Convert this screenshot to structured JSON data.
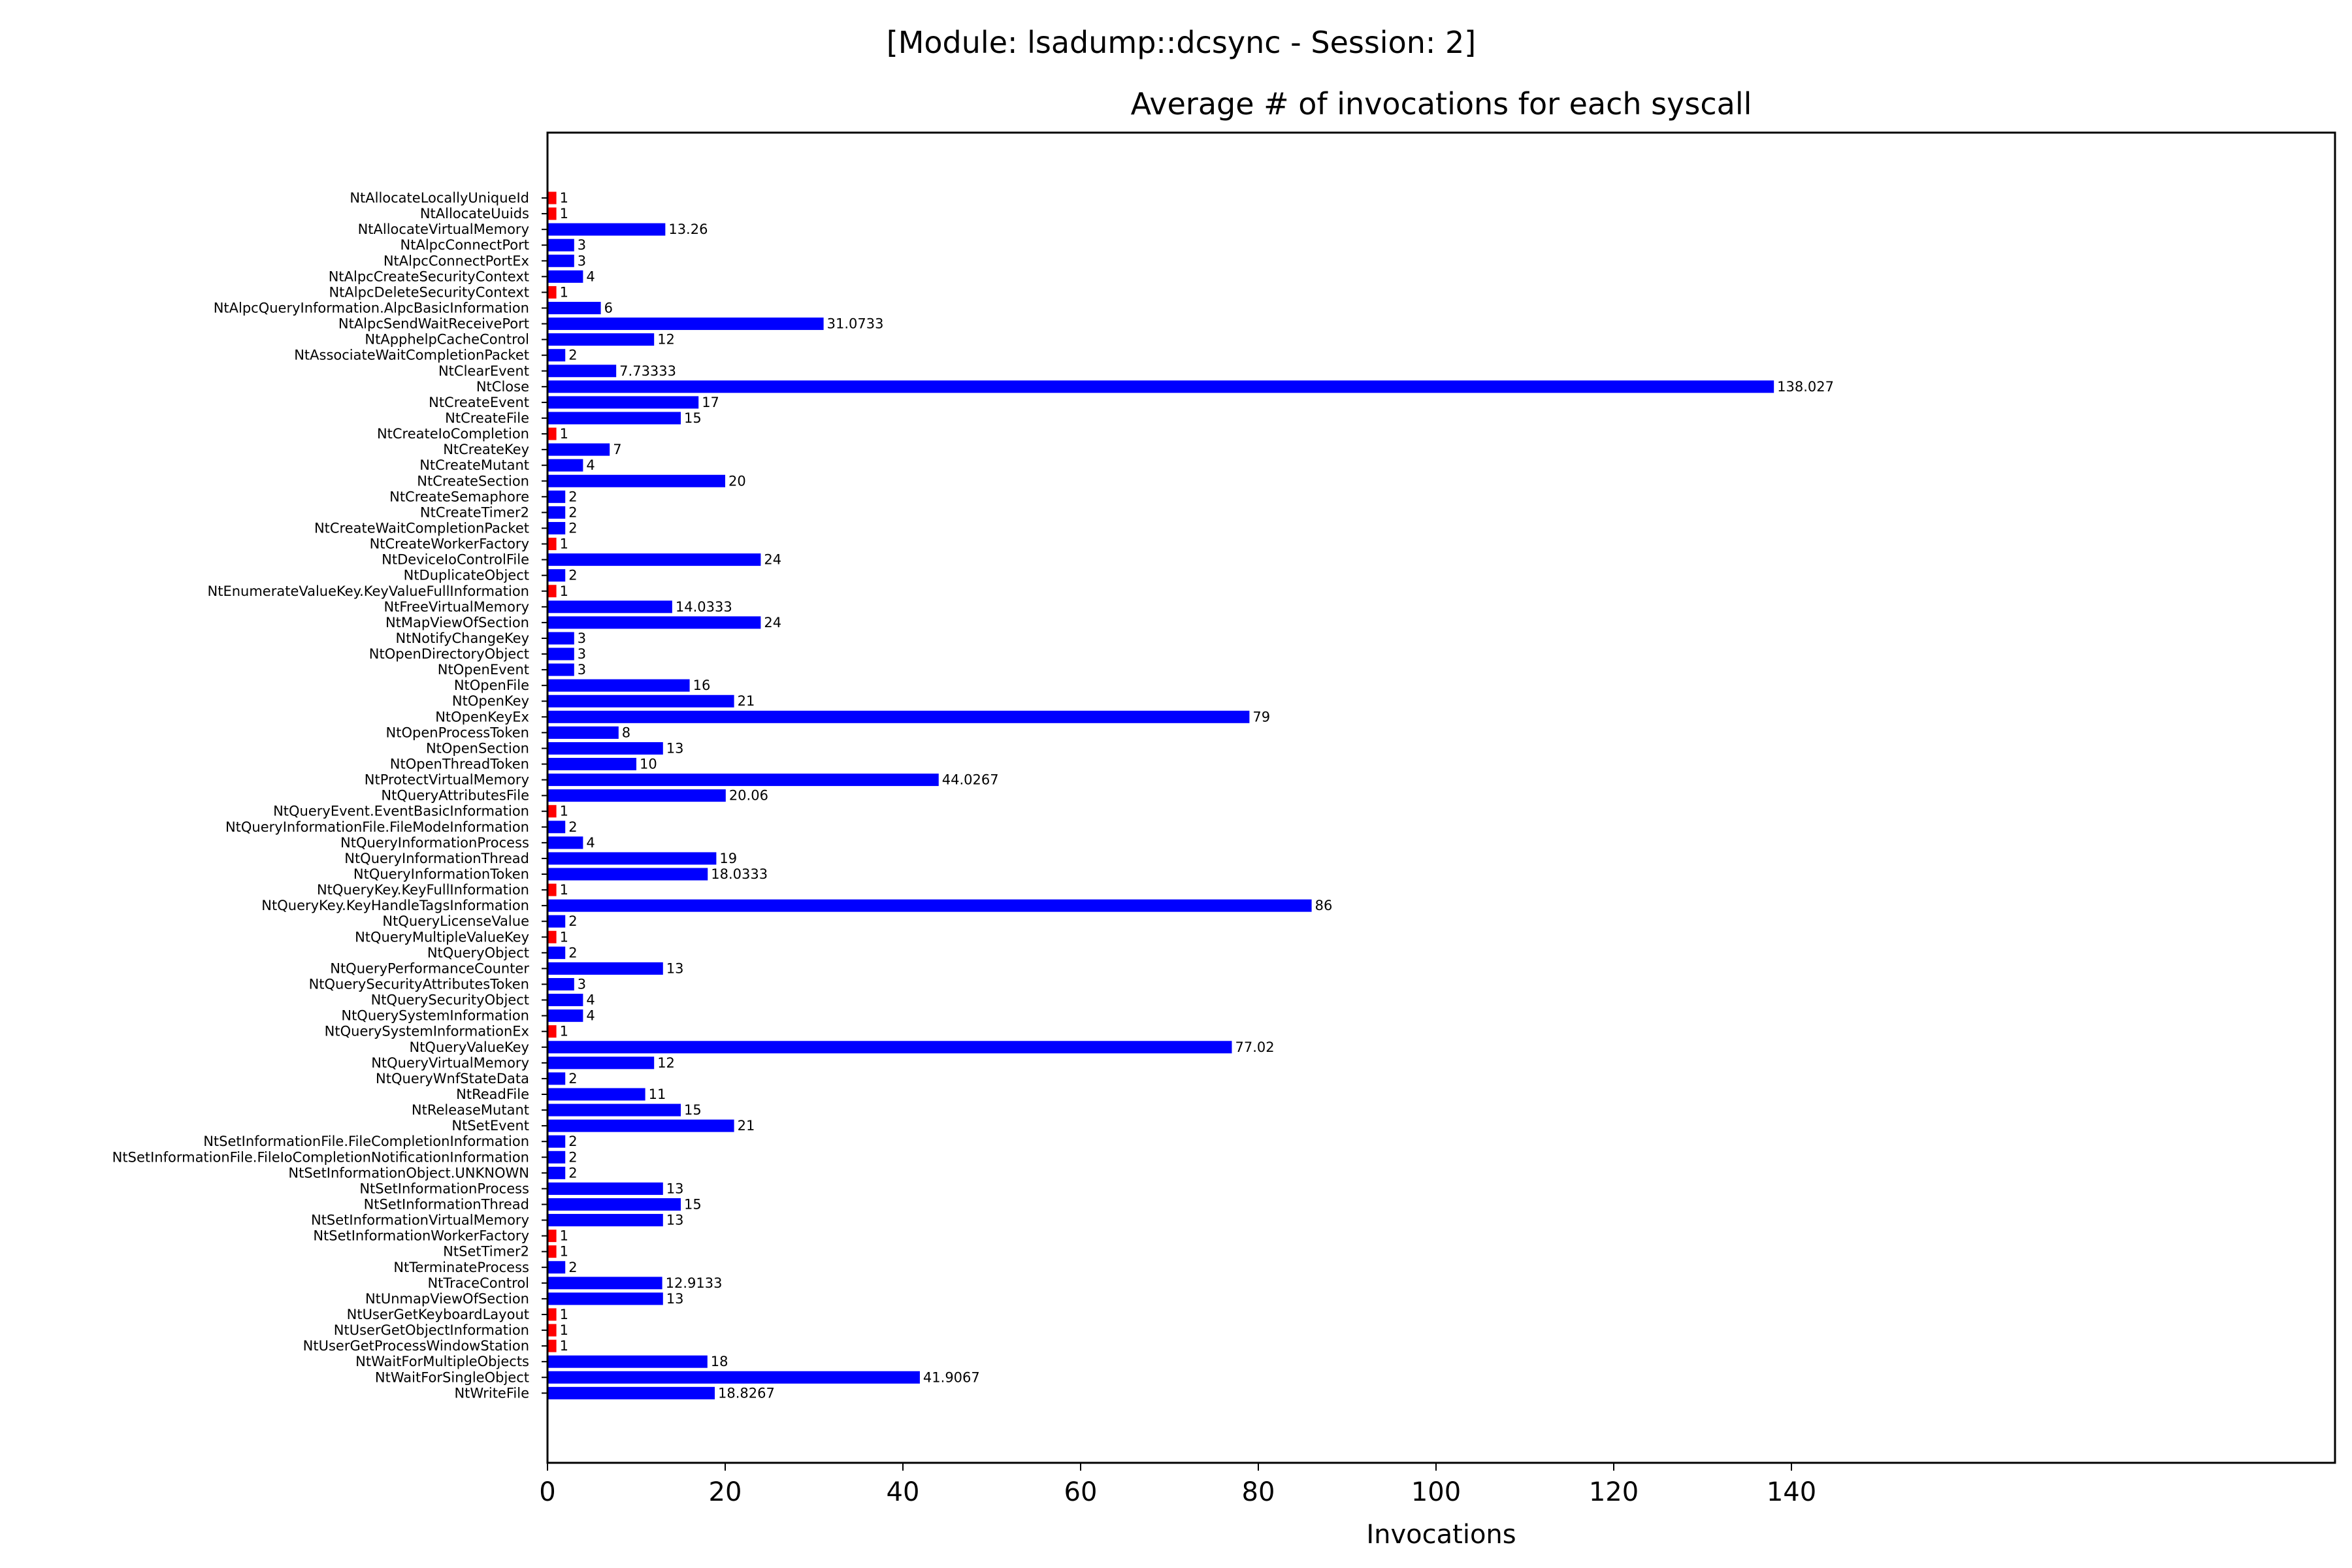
{
  "suptitle": "[Module: lsadump::dcsync - Session: 2]",
  "chart_data": {
    "type": "bar",
    "orientation": "horizontal",
    "title": "Average # of invocations for each syscall",
    "xlabel": "Invocations",
    "ylabel": "",
    "xlim": [
      0,
      145
    ],
    "xticks": [
      0,
      20,
      40,
      60,
      80,
      100,
      120,
      140
    ],
    "grid": false,
    "colors": {
      "default": "#0000ff",
      "single_invocation": "#ff0000"
    },
    "categories": [
      "NtAllocateLocallyUniqueId",
      "NtAllocateUuids",
      "NtAllocateVirtualMemory",
      "NtAlpcConnectPort",
      "NtAlpcConnectPortEx",
      "NtAlpcCreateSecurityContext",
      "NtAlpcDeleteSecurityContext",
      "NtAlpcQueryInformation.AlpcBasicInformation",
      "NtAlpcSendWaitReceivePort",
      "NtApphelpCacheControl",
      "NtAssociateWaitCompletionPacket",
      "NtClearEvent",
      "NtClose",
      "NtCreateEvent",
      "NtCreateFile",
      "NtCreateIoCompletion",
      "NtCreateKey",
      "NtCreateMutant",
      "NtCreateSection",
      "NtCreateSemaphore",
      "NtCreateTimer2",
      "NtCreateWaitCompletionPacket",
      "NtCreateWorkerFactory",
      "NtDeviceIoControlFile",
      "NtDuplicateObject",
      "NtEnumerateValueKey.KeyValueFullInformation",
      "NtFreeVirtualMemory",
      "NtMapViewOfSection",
      "NtNotifyChangeKey",
      "NtOpenDirectoryObject",
      "NtOpenEvent",
      "NtOpenFile",
      "NtOpenKey",
      "NtOpenKeyEx",
      "NtOpenProcessToken",
      "NtOpenSection",
      "NtOpenThreadToken",
      "NtProtectVirtualMemory",
      "NtQueryAttributesFile",
      "NtQueryEvent.EventBasicInformation",
      "NtQueryInformationFile.FileModeInformation",
      "NtQueryInformationProcess",
      "NtQueryInformationThread",
      "NtQueryInformationToken",
      "NtQueryKey.KeyFullInformation",
      "NtQueryKey.KeyHandleTagsInformation",
      "NtQueryLicenseValue",
      "NtQueryMultipleValueKey",
      "NtQueryObject",
      "NtQueryPerformanceCounter",
      "NtQuerySecurityAttributesToken",
      "NtQuerySecurityObject",
      "NtQuerySystemInformation",
      "NtQuerySystemInformationEx",
      "NtQueryValueKey",
      "NtQueryVirtualMemory",
      "NtQueryWnfStateData",
      "NtReadFile",
      "NtReleaseMutant",
      "NtSetEvent",
      "NtSetInformationFile.FileCompletionInformation",
      "NtSetInformationFile.FileIoCompletionNotificationInformation",
      "NtSetInformationObject.UNKNOWN",
      "NtSetInformationProcess",
      "NtSetInformationThread",
      "NtSetInformationVirtualMemory",
      "NtSetInformationWorkerFactory",
      "NtSetTimer2",
      "NtTerminateProcess",
      "NtTraceControl",
      "NtUnmapViewOfSection",
      "NtUserGetKeyboardLayout",
      "NtUserGetObjectInformation",
      "NtUserGetProcessWindowStation",
      "NtWaitForMultipleObjects",
      "NtWaitForSingleObject",
      "NtWriteFile"
    ],
    "values": [
      1,
      1,
      13.26,
      3,
      3,
      4,
      1,
      6,
      31.0733,
      12,
      2,
      7.73333,
      138.027,
      17,
      15,
      1,
      7,
      4,
      20,
      2,
      2,
      2,
      1,
      24,
      2,
      1,
      14.0333,
      24,
      3,
      3,
      3,
      16,
      21,
      79,
      8,
      13,
      10,
      44.0267,
      20.06,
      1,
      2,
      4,
      19,
      18.0333,
      1,
      86,
      2,
      1,
      2,
      13,
      3,
      4,
      4,
      1,
      77.02,
      12,
      2,
      11,
      15,
      21,
      2,
      2,
      2,
      13,
      15,
      13,
      1,
      1,
      2,
      12.9133,
      13,
      1,
      1,
      1,
      18,
      41.9067,
      18.8267
    ],
    "value_labels": [
      "1",
      "1",
      "13.26",
      "3",
      "3",
      "4",
      "1",
      "6",
      "31.0733",
      "12",
      "2",
      "7.73333",
      "138.027",
      "17",
      "15",
      "1",
      "7",
      "4",
      "20",
      "2",
      "2",
      "2",
      "1",
      "24",
      "2",
      "1",
      "14.0333",
      "24",
      "3",
      "3",
      "3",
      "16",
      "21",
      "79",
      "8",
      "13",
      "10",
      "44.0267",
      "20.06",
      "1",
      "2",
      "4",
      "19",
      "18.0333",
      "1",
      "86",
      "2",
      "1",
      "2",
      "13",
      "3",
      "4",
      "4",
      "1",
      "77.02",
      "12",
      "2",
      "11",
      "15",
      "21",
      "2",
      "2",
      "2",
      "13",
      "15",
      "13",
      "1",
      "1",
      "2",
      "12.9133",
      "13",
      "1",
      "1",
      "1",
      "18",
      "41.9067",
      "18.8267"
    ]
  }
}
